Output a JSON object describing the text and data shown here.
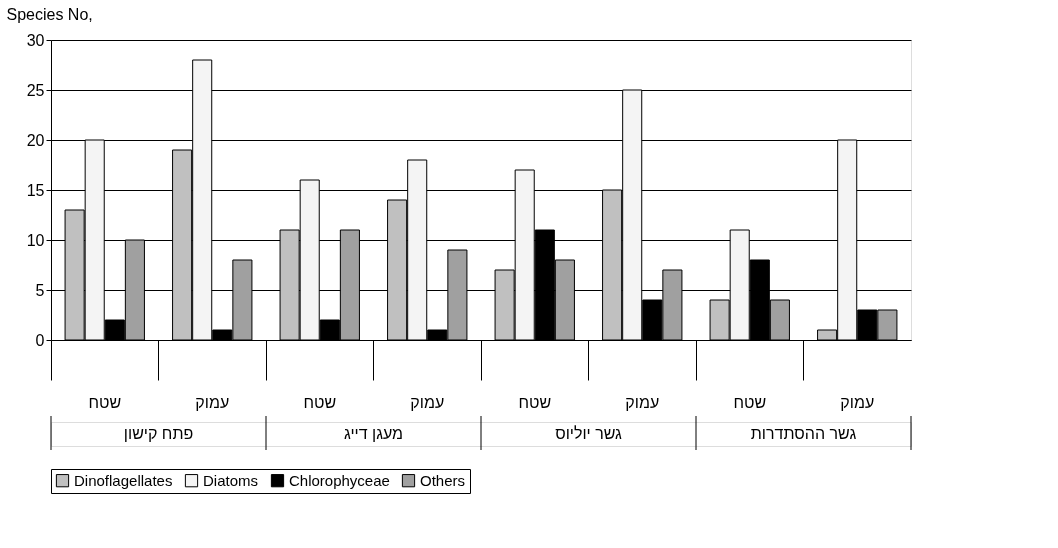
{
  "chart_data": {
    "type": "bar",
    "ylabel": "Species No,",
    "categories": [
      "שטח",
      "עמוק",
      "שטח",
      "עמוק",
      "שטח",
      "עמוק",
      "שטח",
      "עמוק"
    ],
    "annotations": [
      "פתח קישון",
      "מעגן דייג",
      "גשר יוליוס",
      "גשר ההסתדרות"
    ],
    "series": [
      {
        "name": "Dinoflagellates",
        "color": "#c0c0c0",
        "values": [
          13,
          19,
          11,
          14,
          7,
          15,
          4,
          1
        ]
      },
      {
        "name": "Diatoms",
        "color": "#f4f4f4",
        "values": [
          20,
          28,
          16,
          18,
          17,
          25,
          11,
          20
        ]
      },
      {
        "name": "Chlorophyceae",
        "color": "#000000",
        "values": [
          2,
          1,
          2,
          1,
          11,
          4,
          8,
          3
        ]
      },
      {
        "name": "Others",
        "color": "#a0a0a0",
        "values": [
          10,
          8,
          11,
          9,
          8,
          7,
          4,
          3
        ]
      }
    ],
    "ylim": [
      0,
      30
    ],
    "yticks": [
      0,
      5,
      10,
      15,
      20,
      25,
      30
    ],
    "grid": "y",
    "legend": "bottom"
  }
}
